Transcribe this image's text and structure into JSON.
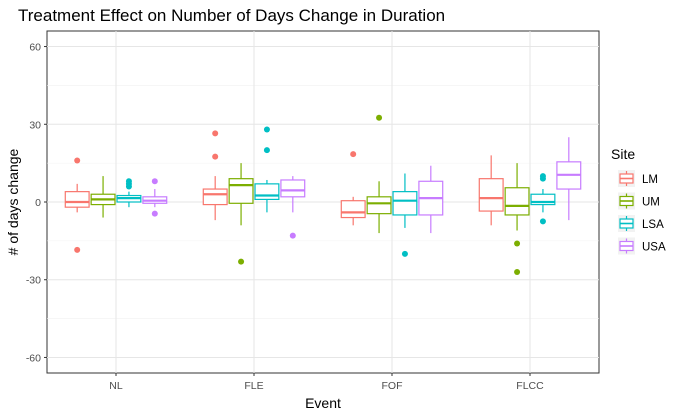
{
  "chart_data": {
    "type": "boxplot",
    "title": "Treatment Effect on Number of Days Change in Duration",
    "xlabel": "Event",
    "ylabel": "# of days change",
    "ylim": [
      -66,
      66
    ],
    "yticks": [
      -60,
      -30,
      0,
      30,
      60
    ],
    "ytick_labels": [
      "-60",
      "-30",
      "0",
      "30",
      "60"
    ],
    "grid": true,
    "legend": {
      "title": "Site",
      "position": "right"
    },
    "categories": [
      "NL",
      "FLE",
      "FOF",
      "FLCC"
    ],
    "series": [
      {
        "name": "LM",
        "color": "#F8766D",
        "boxes": [
          {
            "min": -4,
            "q1": -2,
            "median": 0,
            "q3": 4,
            "max": 7,
            "outliers": [
              16,
              -18.5
            ]
          },
          {
            "min": -7,
            "q1": -1,
            "median": 3,
            "q3": 5,
            "max": 10,
            "outliers": [
              26.5,
              17.5
            ]
          },
          {
            "min": -9,
            "q1": -6,
            "median": -4,
            "q3": 0.5,
            "max": 2,
            "outliers": [
              18.5
            ]
          },
          {
            "min": -9,
            "q1": -3.5,
            "median": 1.5,
            "q3": 9,
            "max": 18,
            "outliers": []
          }
        ]
      },
      {
        "name": "UM",
        "color": "#7CAE00",
        "boxes": [
          {
            "min": -6,
            "q1": -1,
            "median": 1,
            "q3": 3,
            "max": 10,
            "outliers": []
          },
          {
            "min": -9,
            "q1": -0.5,
            "median": 6.5,
            "q3": 9,
            "max": 15,
            "outliers": [
              -23
            ]
          },
          {
            "min": -12,
            "q1": -4.5,
            "median": -0.5,
            "q3": 2,
            "max": 8,
            "outliers": [
              32.5
            ]
          },
          {
            "min": -11,
            "q1": -5,
            "median": -1.5,
            "q3": 5.5,
            "max": 15,
            "outliers": [
              -16,
              -27
            ]
          }
        ]
      },
      {
        "name": "LSA",
        "color": "#00BFC4",
        "boxes": [
          {
            "min": -2,
            "q1": 0,
            "median": 1.5,
            "q3": 2.5,
            "max": 4,
            "outliers": [
              8,
              7,
              6
            ]
          },
          {
            "min": -4,
            "q1": 1,
            "median": 2.5,
            "q3": 7,
            "max": 8.5,
            "outliers": [
              28,
              20
            ]
          },
          {
            "min": -10,
            "q1": -5,
            "median": 0.5,
            "q3": 4,
            "max": 11,
            "outliers": [
              -20
            ]
          },
          {
            "min": -4,
            "q1": -1,
            "median": 0,
            "q3": 3,
            "max": 5,
            "outliers": [
              10,
              9,
              -7.5
            ]
          }
        ]
      },
      {
        "name": "USA",
        "color": "#C77CFF",
        "boxes": [
          {
            "min": -2,
            "q1": -0.5,
            "median": 0.5,
            "q3": 2,
            "max": 5,
            "outliers": [
              8,
              -4.5
            ]
          },
          {
            "min": -4,
            "q1": 2,
            "median": 4.5,
            "q3": 8.5,
            "max": 10,
            "outliers": [
              -13
            ]
          },
          {
            "min": -12,
            "q1": -5,
            "median": 1.5,
            "q3": 8,
            "max": 14,
            "outliers": []
          },
          {
            "min": -7,
            "q1": 5,
            "median": 10.5,
            "q3": 15.5,
            "max": 25,
            "outliers": []
          }
        ]
      }
    ]
  }
}
